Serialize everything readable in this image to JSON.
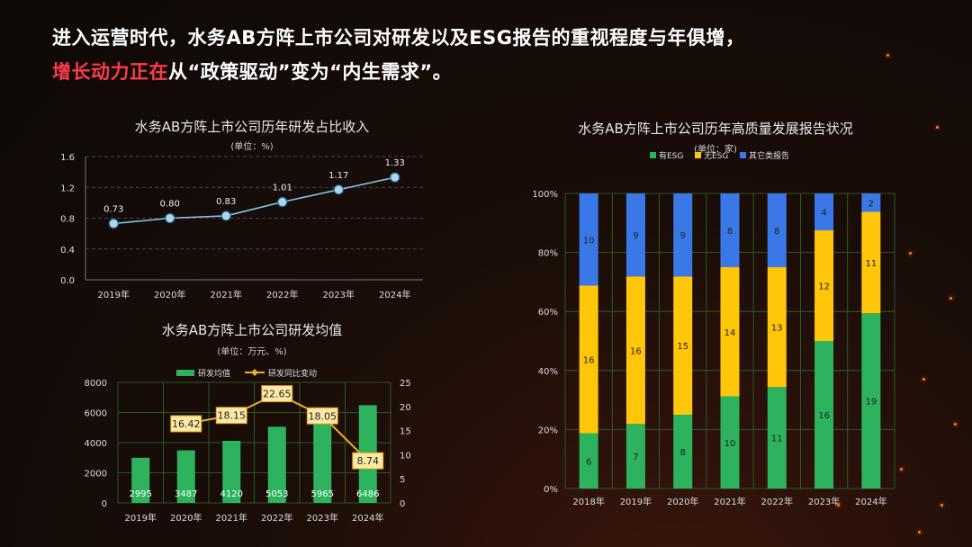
{
  "headline": {
    "line1": "进入运营时代，水务AB方阵上市公司对研发以及ESG报告的重视程度与年俱增，",
    "line2_red": "增长动力正在",
    "line2_rest": "从“政策驱动”变为“内生需求”。"
  },
  "chart_data": [
    {
      "id": "rd_ratio",
      "type": "line",
      "title": "水务AB方阵上市公司历年研发占比收入",
      "unit": "(单位：%)",
      "categories": [
        "2019年",
        "2020年",
        "2021年",
        "2022年",
        "2023年",
        "2024年"
      ],
      "values": [
        0.73,
        0.8,
        0.83,
        1.01,
        1.17,
        1.33
      ],
      "labels": [
        "0.73",
        "0.80",
        "0.83",
        "1.01",
        "1.17",
        "1.33"
      ],
      "ylim": [
        0,
        1.6
      ],
      "yticks": [
        "0.0",
        "0.4",
        "0.8",
        "1.2",
        "1.6"
      ],
      "color": "#7ec7ea"
    },
    {
      "id": "rd_mean",
      "type": "bar+line",
      "title": "水务AB方阵上市公司研发均值",
      "unit": "(单位：万元、%)",
      "categories": [
        "2019年",
        "2020年",
        "2021年",
        "2022年",
        "2023年",
        "2024年"
      ],
      "series": [
        {
          "name": "研发均值",
          "type": "bar",
          "values": [
            2995,
            3487,
            4120,
            5053,
            5965,
            6486
          ],
          "color": "#2db35d"
        },
        {
          "name": "研发同比变动",
          "type": "line",
          "values": [
            null,
            16.42,
            18.15,
            22.65,
            18.05,
            8.74
          ],
          "labels": [
            "",
            "16.42",
            "18.15",
            "22.65",
            "18.05",
            "8.74"
          ],
          "color": "#f0b020"
        }
      ],
      "ylim_left": [
        0,
        8000
      ],
      "yticks_left": [
        "0",
        "2000",
        "4000",
        "6000",
        "8000"
      ],
      "ylim_right": [
        0,
        25
      ],
      "yticks_right": [
        "0",
        "5",
        "10",
        "15",
        "20",
        "25"
      ]
    },
    {
      "id": "report",
      "type": "stacked_bar_100",
      "title": "水务AB方阵上市公司历年高质量发展报告状况",
      "unit": "(单位：家)",
      "categories": [
        "2018年",
        "2019年",
        "2020年",
        "2021年",
        "2022年",
        "2023年",
        "2024年"
      ],
      "series": [
        {
          "name": "有ESG",
          "values": [
            6,
            7,
            8,
            10,
            11,
            16,
            19
          ],
          "color": "#2db35d"
        },
        {
          "name": "无ESG",
          "values": [
            16,
            16,
            15,
            14,
            13,
            12,
            11
          ],
          "color": "#ffc60a"
        },
        {
          "name": "其它类报告",
          "values": [
            10,
            9,
            9,
            8,
            8,
            4,
            2
          ],
          "color": "#3b78e7"
        }
      ],
      "yticks": [
        "0%",
        "20%",
        "40%",
        "60%",
        "80%",
        "100%"
      ]
    }
  ]
}
